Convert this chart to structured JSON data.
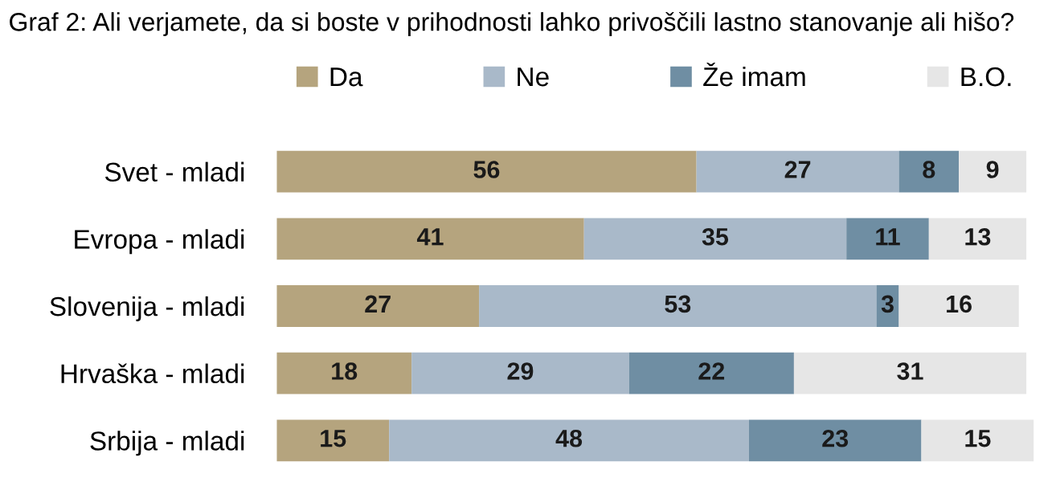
{
  "chart_data": {
    "type": "bar",
    "orientation": "horizontal",
    "stacked": true,
    "data_labels": true,
    "legend": "top",
    "grid": false,
    "title": "Graf 2: Ali verjamete, da si boste v prihodnosti lahko privoščili lastno stanovanje ali hišo?",
    "categories": [
      "Svet - mladi",
      "Evropa - mladi",
      "Slovenija - mladi",
      "Hrvaška - mladi",
      "Srbija - mladi"
    ],
    "series": [
      {
        "name": "Da",
        "color": "#b5a47e",
        "values": [
          56,
          41,
          27,
          18,
          15
        ]
      },
      {
        "name": "Ne",
        "color": "#a9b9c9",
        "values": [
          27,
          35,
          53,
          29,
          48
        ]
      },
      {
        "name": "Že imam",
        "color": "#6f8ea3",
        "values": [
          8,
          11,
          3,
          22,
          23
        ]
      },
      {
        "name": "B.O.",
        "color": "#e6e6e6",
        "values": [
          9,
          13,
          16,
          31,
          15
        ]
      }
    ]
  }
}
